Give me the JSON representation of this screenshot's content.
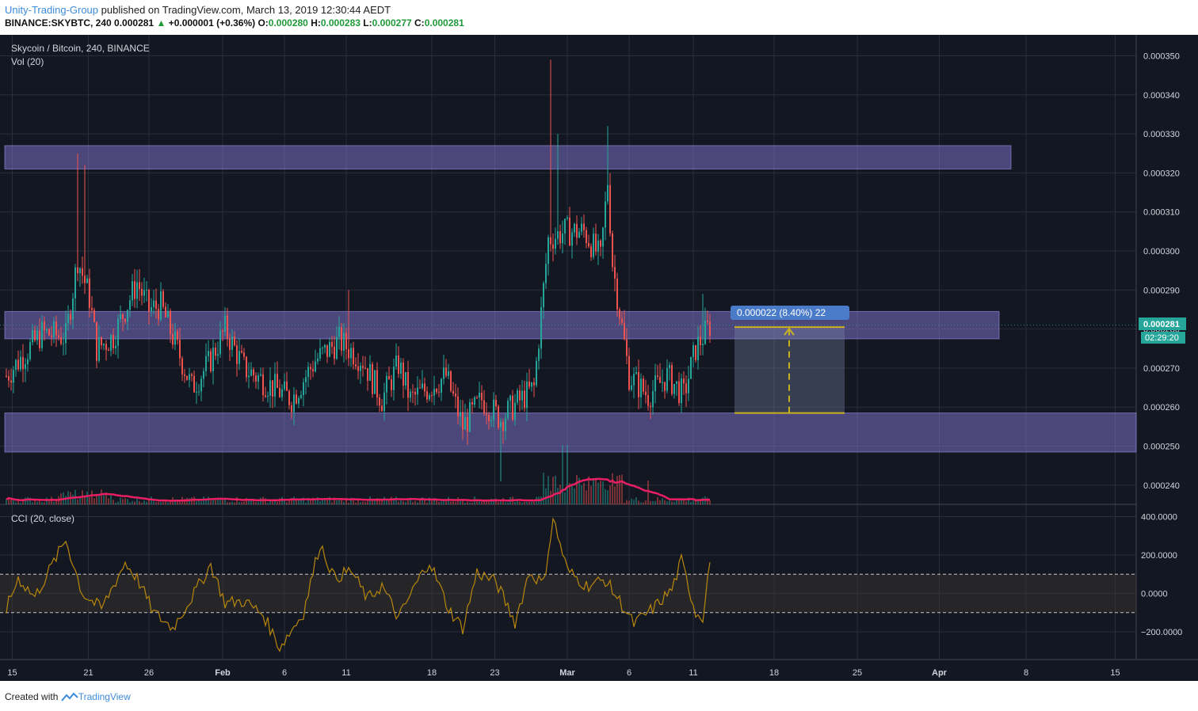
{
  "header": {
    "author": "Unity-Trading-Group",
    "published": "published on TradingView.com, March 13, 2019 12:30:44 AEDT",
    "symbol": "BINANCE:SKYBTC, 240",
    "last": "0.000281",
    "change": "+0.000001 (+0.36%)",
    "o_label": "O:",
    "o": "0.000280",
    "h_label": "H:",
    "h": "0.000283",
    "l_label": "L:",
    "l": "0.000277",
    "c_label": "C:",
    "c": "0.000281"
  },
  "chart_title": "Skycoin / Bitcoin, 240, BINANCE",
  "vol_label": "Vol (20)",
  "cci_label": "CCI (20, close)",
  "measure_label": "0.000022 (8.40%) 22",
  "price_tag": "0.000281",
  "countdown_tag": "02:29:20",
  "footer": {
    "created": "Created with",
    "brand": "TradingView"
  },
  "colors": {
    "background": "#131722",
    "up": "#26a69a",
    "down": "#ef5350",
    "zone": "#7b6fc4",
    "vol_ma": "#e91e63",
    "cci": "#b8860b"
  },
  "chart_data": [
    {
      "type": "candlestick",
      "title": "Skycoin / Bitcoin, 240, BINANCE",
      "x_ticks": [
        "15",
        "21",
        "26",
        "Feb",
        "6",
        "11",
        "18",
        "23",
        "Mar",
        "6",
        "11",
        "18",
        "25",
        "Apr",
        "8",
        "15"
      ],
      "y_ticks": [
        "0.000350",
        "0.000340",
        "0.000330",
        "0.000320",
        "0.000310",
        "0.000300",
        "0.000290",
        "0.000280",
        "0.000270",
        "0.000260",
        "0.000250",
        "0.000240"
      ],
      "ylim": [
        0.000235,
        0.000355
      ],
      "zones": [
        [
          0.000321,
          0.000327
        ],
        [
          0.0002775,
          0.0002845
        ],
        [
          0.0002485,
          0.0002585
        ]
      ],
      "measure": {
        "from": 0.0002585,
        "to": 0.0002805,
        "value": "0.000022 (8.40%) 22"
      },
      "last_price": 0.000281,
      "series": [
        {
          "name": "Price",
          "anchors": [
            [
              0,
              0.000268
            ],
            [
              15,
              0.000279
            ],
            [
              25,
              0.000278
            ],
            [
              28,
              0.00029
            ],
            [
              30,
              0.000298
            ],
            [
              35,
              0.000288
            ],
            [
              38,
              0.000275
            ],
            [
              45,
              0.000278
            ],
            [
              55,
              0.000292
            ],
            [
              60,
              0.000285
            ],
            [
              65,
              0.000286
            ],
            [
              70,
              0.000278
            ],
            [
              78,
              0.000265
            ],
            [
              85,
              0.000271
            ],
            [
              92,
              0.00028
            ],
            [
              100,
              0.00027
            ],
            [
              110,
              0.000266
            ],
            [
              120,
              0.000262
            ],
            [
              130,
              0.000272
            ],
            [
              140,
              0.000277
            ],
            [
              150,
              0.000272
            ],
            [
              158,
              0.000262
            ],
            [
              165,
              0.000271
            ],
            [
              170,
              0.000262
            ],
            [
              178,
              0.000265
            ],
            [
              185,
              0.000268
            ],
            [
              192,
              0.000255
            ],
            [
              200,
              0.000262
            ],
            [
              208,
              0.000257
            ],
            [
              213,
              0.00026
            ],
            [
              222,
              0.000265
            ],
            [
              228,
              0.000303
            ],
            [
              235,
              0.000305
            ],
            [
              243,
              0.000305
            ],
            [
              250,
              0.000298
            ],
            [
              253,
              0.000318
            ],
            [
              255,
              0.000297
            ],
            [
              262,
              0.000268
            ],
            [
              270,
              0.000263
            ],
            [
              278,
              0.000268
            ],
            [
              285,
              0.000263
            ],
            [
              290,
              0.000275
            ],
            [
              296,
              0.000281
            ]
          ]
        },
        {
          "name": "Vol (20)"
        }
      ]
    },
    {
      "type": "line",
      "title": "CCI (20, close)",
      "y_ticks": [
        "400.0000",
        "200.0000",
        "0.0000",
        "−200.0000"
      ],
      "ylim": [
        -350,
        430
      ],
      "bands": [
        -100,
        100
      ],
      "series": [
        {
          "name": "CCI (20, close)",
          "anchors": [
            [
              0,
              -80
            ],
            [
              5,
              80
            ],
            [
              12,
              -20
            ],
            [
              25,
              280
            ],
            [
              32,
              0
            ],
            [
              40,
              -80
            ],
            [
              50,
              160
            ],
            [
              55,
              80
            ],
            [
              62,
              -100
            ],
            [
              70,
              -180
            ],
            [
              80,
              20
            ],
            [
              86,
              150
            ],
            [
              92,
              -50
            ],
            [
              100,
              -40
            ],
            [
              108,
              -110
            ],
            [
              115,
              -280
            ],
            [
              125,
              -100
            ],
            [
              132,
              260
            ],
            [
              138,
              80
            ],
            [
              145,
              120
            ],
            [
              152,
              -30
            ],
            [
              158,
              40
            ],
            [
              165,
              -130
            ],
            [
              172,
              40
            ],
            [
              178,
              170
            ],
            [
              186,
              -80
            ],
            [
              192,
              -180
            ],
            [
              198,
              110
            ],
            [
              206,
              60
            ],
            [
              214,
              -150
            ],
            [
              220,
              110
            ],
            [
              226,
              50
            ],
            [
              230,
              390
            ],
            [
              236,
              120
            ],
            [
              244,
              40
            ],
            [
              252,
              70
            ],
            [
              258,
              -40
            ],
            [
              264,
              -160
            ],
            [
              272,
              -80
            ],
            [
              280,
              20
            ],
            [
              284,
              170
            ],
            [
              290,
              -100
            ],
            [
              293,
              -120
            ],
            [
              296,
              170
            ]
          ]
        }
      ]
    }
  ]
}
